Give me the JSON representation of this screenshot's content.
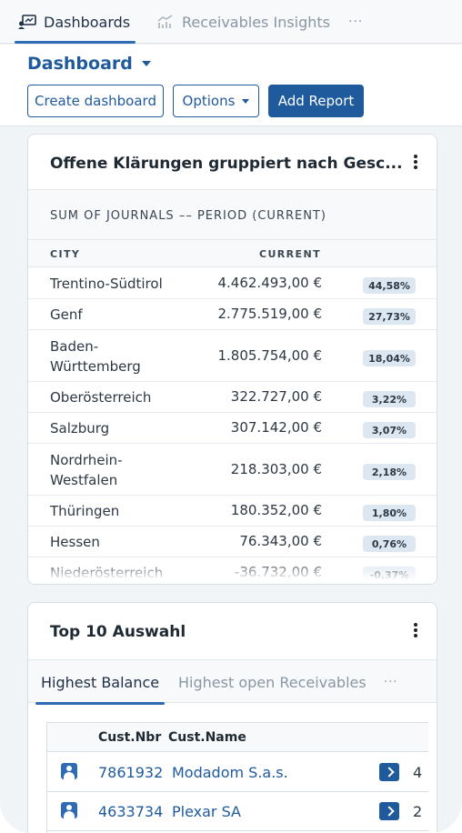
{
  "tabs": {
    "active": "Dashboards",
    "inactive": "Receivables Insights",
    "more": "···"
  },
  "header": {
    "title": "Dashboard",
    "create_label": "Create dashboard",
    "options_label": "Options",
    "add_report_label": "Add Report"
  },
  "card1": {
    "title": "Offene Klärungen gruppiert nach Gesc...",
    "subtitle": "SUM OF JOURNALS –– PERIOD (CURRENT)",
    "col_city": "CITY",
    "col_current": "CURRENT",
    "rows": [
      {
        "city": "Trentino-Südtirol",
        "value": "4.462.493,00 €",
        "pct": "44,58%"
      },
      {
        "city": "Genf",
        "value": "2.775.519,00 €",
        "pct": "27,73%"
      },
      {
        "city": "Baden-\nWürttemberg",
        "value": "1.805.754,00 €",
        "pct": "18,04%"
      },
      {
        "city": "Oberösterreich",
        "value": "322.727,00 €",
        "pct": "3,22%"
      },
      {
        "city": "Salzburg",
        "value": "307.142,00 €",
        "pct": "3,07%"
      },
      {
        "city": "Nordrhein-\nWestfalen",
        "value": "218.303,00 €",
        "pct": "2,18%"
      },
      {
        "city": "Thüringen",
        "value": "180.352,00 €",
        "pct": "1,80%"
      },
      {
        "city": "Hessen",
        "value": "76.343,00 €",
        "pct": "0,76%"
      },
      {
        "city": "Niederösterreich",
        "value": "-36.732,00 €",
        "pct": "-0,37%"
      }
    ]
  },
  "card2": {
    "title": "Top 10 Auswahl",
    "tab_active": "Highest Balance",
    "tab_inactive": "Highest open Receivables",
    "tab_more": "···",
    "col_nbr": "Cust.Nbr",
    "col_name": "Cust.Name",
    "rows": [
      {
        "nbr": "7861932",
        "name": "Modadom S.a.s.",
        "trunc": "4"
      },
      {
        "nbr": "4633734",
        "name": "Plexar SA",
        "trunc": "2"
      }
    ]
  },
  "colors": {
    "accent": "#1f5a9d",
    "tab_underline": "#2f6bb5",
    "badge_bg": "#dde7f2",
    "page_bg": "#f1f4f7"
  },
  "icons": {
    "dashboards_tab": "dashboard-board-icon",
    "insights_tab": "chart-trend-icon",
    "customer": "customer-person-icon",
    "row_open": "chevron-right-icon"
  }
}
